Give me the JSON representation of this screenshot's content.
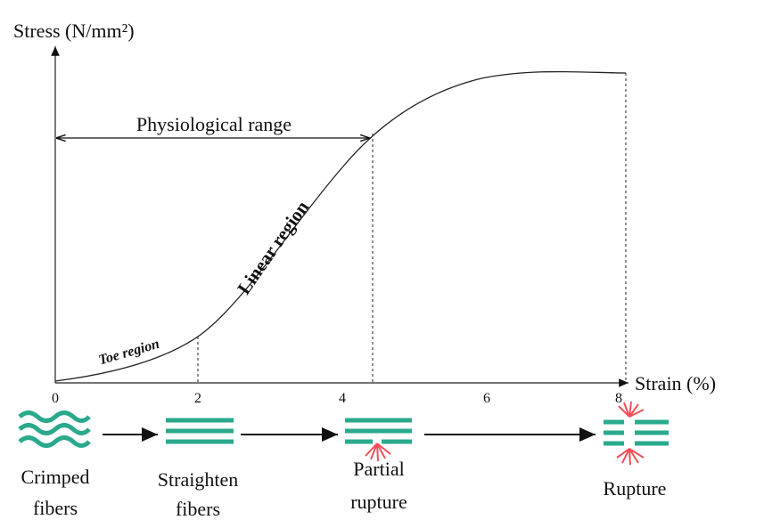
{
  "axes": {
    "y_label": "Stress (N/mm²)",
    "x_label": "Strain (%)",
    "x_ticks": [
      "0",
      "2",
      "4",
      "6",
      "8"
    ]
  },
  "annotations": {
    "physiological_range": "Physiological range",
    "linear_region": "Linear region",
    "toe_region": "Toe region"
  },
  "stages": [
    {
      "label_lines": [
        "Crimped",
        "fibers"
      ]
    },
    {
      "label_lines": [
        "Straighten",
        "fibers"
      ]
    },
    {
      "label_lines": [
        "Partial",
        "rupture"
      ]
    },
    {
      "label_lines": [
        "Rupture"
      ]
    }
  ]
}
